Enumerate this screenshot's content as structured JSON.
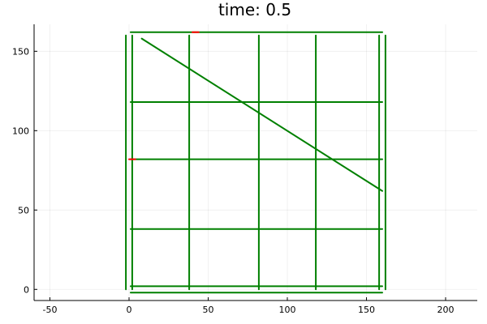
{
  "chart_data": {
    "type": "line",
    "title": "time: 0.5",
    "xlabel": "",
    "ylabel": "",
    "xlim": [
      -60,
      220
    ],
    "ylim": [
      -7,
      167
    ],
    "x_ticks": [
      -50,
      0,
      50,
      100,
      150,
      200
    ],
    "y_ticks": [
      0,
      50,
      100,
      150
    ],
    "grid": true,
    "legend": "none",
    "colors": {
      "structure": "#008000",
      "highlight": "#ff0000"
    },
    "series": [
      {
        "color": "#008000",
        "segments": [
          [
            [
              1,
              162
            ],
            [
              160,
              162
            ]
          ],
          [
            [
              1,
              118
            ],
            [
              160,
              118
            ]
          ],
          [
            [
              1,
              82
            ],
            [
              160,
              82
            ]
          ],
          [
            [
              1,
              38
            ],
            [
              160,
              38
            ]
          ],
          [
            [
              1,
              2
            ],
            [
              160,
              2
            ]
          ],
          [
            [
              1,
              -2
            ],
            [
              160,
              -2
            ]
          ],
          [
            [
              -2,
              160
            ],
            [
              -2,
              0
            ]
          ],
          [
            [
              2,
              160
            ],
            [
              2,
              0
            ]
          ],
          [
            [
              38,
              160
            ],
            [
              38,
              0
            ]
          ],
          [
            [
              82,
              160
            ],
            [
              82,
              0
            ]
          ],
          [
            [
              118,
              160
            ],
            [
              118,
              0
            ]
          ],
          [
            [
              158,
              160
            ],
            [
              158,
              0
            ]
          ],
          [
            [
              162,
              160
            ],
            [
              162,
              0
            ]
          ],
          [
            [
              8,
              158
            ],
            [
              160,
              62
            ]
          ]
        ]
      },
      {
        "color": "#ff0000",
        "segments": [
          [
            [
              40,
              162
            ],
            [
              44,
              162
            ]
          ],
          [
            [
              0,
              82
            ],
            [
              4,
              82
            ]
          ]
        ]
      }
    ]
  }
}
